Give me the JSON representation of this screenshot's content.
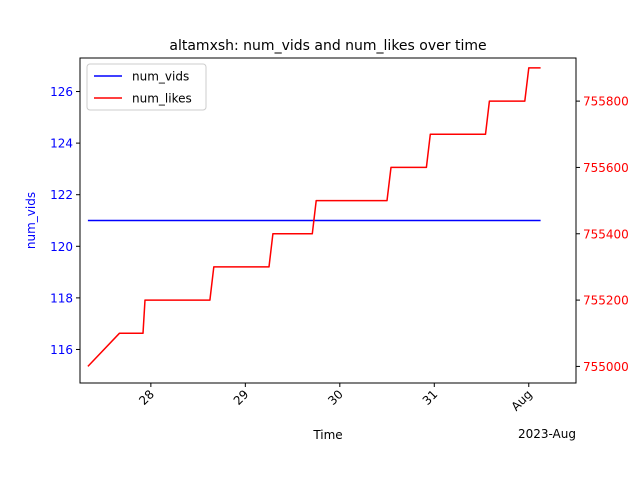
{
  "chart_data": {
    "type": "line",
    "title": "altamxsh: num_vids and num_likes over time",
    "xlabel": "Time",
    "x_offset_label": "2023-Aug",
    "x_ticks": [
      {
        "x": "2023-07-28",
        "label": "28"
      },
      {
        "x": "2023-07-29",
        "label": "29"
      },
      {
        "x": "2023-07-30",
        "label": "30"
      },
      {
        "x": "2023-07-31",
        "label": "31"
      },
      {
        "x": "2023-08-01",
        "label": "Aug"
      }
    ],
    "xlim": [
      "2023-07-27 06:00",
      "2023-08-01 12:00"
    ],
    "y_left": {
      "label": "num_vids",
      "ylim": [
        114.7,
        127.3
      ],
      "ticks": [
        116,
        118,
        120,
        122,
        124,
        126
      ],
      "color": "#0000ff"
    },
    "y_right": {
      "ylim": [
        754950,
        755930
      ],
      "ticks": [
        755000,
        755200,
        755400,
        755600,
        755800
      ],
      "color": "#ff0000"
    },
    "legend_position": "upper-left",
    "grid": false,
    "series": [
      {
        "name": "num_vids",
        "axis": "left",
        "color": "#0000ff",
        "points": [
          {
            "x": "2023-07-27 08:00",
            "y": 121
          },
          {
            "x": "2023-08-01 03:00",
            "y": 121
          }
        ]
      },
      {
        "name": "num_likes",
        "axis": "right",
        "color": "#ff0000",
        "points": [
          {
            "x": "2023-07-27 08:00",
            "y": 755000
          },
          {
            "x": "2023-07-27 16:00",
            "y": 755100
          },
          {
            "x": "2023-07-27 22:00",
            "y": 755100
          },
          {
            "x": "2023-07-27 22:30",
            "y": 755200
          },
          {
            "x": "2023-07-28 15:00",
            "y": 755200
          },
          {
            "x": "2023-07-28 16:00",
            "y": 755300
          },
          {
            "x": "2023-07-29 06:00",
            "y": 755300
          },
          {
            "x": "2023-07-29 07:00",
            "y": 755400
          },
          {
            "x": "2023-07-29 17:00",
            "y": 755400
          },
          {
            "x": "2023-07-29 18:00",
            "y": 755500
          },
          {
            "x": "2023-07-30 12:00",
            "y": 755500
          },
          {
            "x": "2023-07-30 13:00",
            "y": 755600
          },
          {
            "x": "2023-07-30 22:00",
            "y": 755600
          },
          {
            "x": "2023-07-30 23:00",
            "y": 755700
          },
          {
            "x": "2023-07-31 13:00",
            "y": 755700
          },
          {
            "x": "2023-07-31 14:00",
            "y": 755800
          },
          {
            "x": "2023-07-31 23:00",
            "y": 755800
          },
          {
            "x": "2023-08-01 00:00",
            "y": 755900
          },
          {
            "x": "2023-08-01 03:00",
            "y": 755900
          }
        ]
      }
    ]
  }
}
